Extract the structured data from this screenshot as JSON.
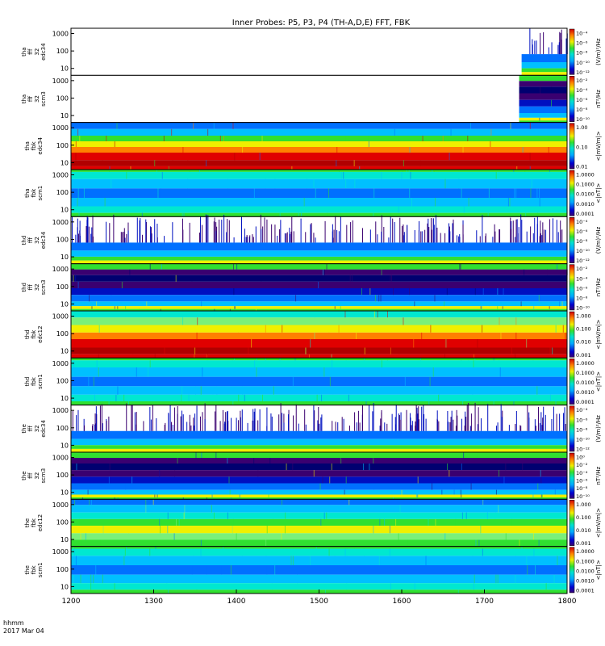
{
  "title": "Inner Probes: P5, P3, P4 (TH-A,D,E) FFT, FBK",
  "footer": {
    "line1": "hhmm",
    "line2": "2017 Mar 04"
  },
  "x_axis": {
    "min": 1200,
    "max": 1800,
    "ticks": [
      "1200",
      "1300",
      "1400",
      "1500",
      "1600",
      "1700",
      "1800"
    ]
  },
  "chart_data": [
    {
      "type": "heatmap",
      "ylabel": [
        "tha",
        "fff",
        "32",
        "edc34"
      ],
      "yscale": "log",
      "ylim": [
        4,
        2000
      ],
      "yticks": [
        "1000",
        "100",
        "10"
      ],
      "cbar_unit": "(V/m)²/Hz",
      "cbar_ticks": [
        "10⁻⁴",
        "10⁻⁶",
        "10⁻⁸",
        "10⁻¹⁰",
        "10⁻¹²"
      ],
      "data_range_x": [
        1745,
        1800
      ],
      "pattern": "spiky"
    },
    {
      "type": "heatmap",
      "ylabel": [
        "tha",
        "fff",
        "32",
        "scm3"
      ],
      "yscale": "log",
      "ylim": [
        4,
        2000
      ],
      "yticks": [
        "1000",
        "100",
        "10"
      ],
      "cbar_unit": "nT²/Hz",
      "cbar_ticks": [
        "10⁻²",
        "10⁻⁴",
        "10⁻⁶",
        "10⁻⁸",
        "10⁻¹⁰"
      ],
      "data_range_x": [
        1742,
        1800
      ],
      "pattern": "scm"
    },
    {
      "type": "heatmap",
      "ylabel": [
        "tha",
        "fbk",
        "edc34"
      ],
      "yscale": "log",
      "ylim": [
        4,
        2000
      ],
      "yticks": [
        "1000",
        "100",
        "10"
      ],
      "cbar_unit": "<|mV/m|>",
      "cbar_ticks": [
        "1.00",
        "0.10",
        "0.01"
      ],
      "data_range_x": [
        1200,
        1800
      ],
      "pattern": "fbkE"
    },
    {
      "type": "heatmap",
      "ylabel": [
        "tha",
        "fbk",
        "scm1"
      ],
      "yscale": "log",
      "ylim": [
        4,
        2000
      ],
      "yticks": [
        "1000",
        "100",
        "10"
      ],
      "cbar_unit": "<|nT|>",
      "cbar_ticks": [
        "1.0000",
        "0.1000",
        "0.0100",
        "0.0010",
        "0.0001"
      ],
      "data_range_x": [
        1200,
        1800
      ],
      "pattern": "fbkB"
    },
    {
      "type": "heatmap",
      "ylabel": [
        "thd",
        "fff",
        "32",
        "edc34"
      ],
      "yscale": "log",
      "ylim": [
        4,
        2000
      ],
      "yticks": [
        "1000",
        "100",
        "10"
      ],
      "cbar_unit": "(V/m)²/Hz",
      "cbar_ticks": [
        "10⁻⁴",
        "10⁻⁶",
        "10⁻⁸",
        "10⁻¹⁰",
        "10⁻¹²"
      ],
      "data_range_x": [
        1200,
        1800
      ],
      "pattern": "spiky"
    },
    {
      "type": "heatmap",
      "ylabel": [
        "thd",
        "fff",
        "32",
        "scm3"
      ],
      "yscale": "log",
      "ylim": [
        4,
        2000
      ],
      "yticks": [
        "1000",
        "100",
        "10"
      ],
      "cbar_unit": "nT²/Hz",
      "cbar_ticks": [
        "10⁻²",
        "10⁻⁴",
        "10⁻⁶",
        "10⁻⁸",
        "10⁻¹⁰"
      ],
      "data_range_x": [
        1200,
        1800
      ],
      "pattern": "scm"
    },
    {
      "type": "heatmap",
      "ylabel": [
        "thd",
        "fbk",
        "edc12"
      ],
      "yscale": "log",
      "ylim": [
        4,
        2000
      ],
      "yticks": [
        "1000",
        "100",
        "10"
      ],
      "cbar_unit": "<|mV/m|>",
      "cbar_ticks": [
        "1.000",
        "0.100",
        "0.010",
        "0.001"
      ],
      "data_range_x": [
        1200,
        1800
      ],
      "pattern": "fbkE2"
    },
    {
      "type": "heatmap",
      "ylabel": [
        "thd",
        "fbk",
        "scm1"
      ],
      "yscale": "log",
      "ylim": [
        4,
        2000
      ],
      "yticks": [
        "1000",
        "100",
        "10"
      ],
      "cbar_unit": "<|nT|>",
      "cbar_ticks": [
        "1.0000",
        "0.1000",
        "0.0100",
        "0.0010",
        "0.0001"
      ],
      "data_range_x": [
        1200,
        1800
      ],
      "pattern": "fbkB"
    },
    {
      "type": "heatmap",
      "ylabel": [
        "the",
        "fff",
        "32",
        "edc34"
      ],
      "yscale": "log",
      "ylim": [
        4,
        2000
      ],
      "yticks": [
        "1000",
        "100",
        "10"
      ],
      "cbar_unit": "(V/m)²/Hz",
      "cbar_ticks": [
        "10⁻⁴",
        "10⁻⁶",
        "10⁻⁸",
        "10⁻¹⁰",
        "10⁻¹²"
      ],
      "data_range_x": [
        1200,
        1800
      ],
      "pattern": "spiky"
    },
    {
      "type": "heatmap",
      "ylabel": [
        "the",
        "fff",
        "32",
        "scm3"
      ],
      "yscale": "log",
      "ylim": [
        4,
        2000
      ],
      "yticks": [
        "1000",
        "100",
        "10"
      ],
      "cbar_unit": "nT²/Hz",
      "cbar_ticks": [
        "10⁰",
        "10⁻²",
        "10⁻⁴",
        "10⁻⁶",
        "10⁻⁸",
        "10⁻¹⁰"
      ],
      "data_range_x": [
        1200,
        1800
      ],
      "pattern": "scm"
    },
    {
      "type": "heatmap",
      "ylabel": [
        "the",
        "fbk",
        "edc12"
      ],
      "yscale": "log",
      "ylim": [
        4,
        2000
      ],
      "yticks": [
        "1000",
        "100",
        "10"
      ],
      "cbar_unit": "<|mV/m|>",
      "cbar_ticks": [
        "1.000",
        "0.100",
        "0.010",
        "0.001"
      ],
      "data_range_x": [
        1200,
        1800
      ],
      "pattern": "fbkE3"
    },
    {
      "type": "heatmap",
      "ylabel": [
        "the",
        "fbk",
        "scm1"
      ],
      "yscale": "log",
      "ylim": [
        4,
        2000
      ],
      "yticks": [
        "1000",
        "100",
        "10"
      ],
      "cbar_unit": "<|nT|>",
      "cbar_ticks": [
        "1.0000",
        "0.1000",
        "0.0100",
        "0.0010",
        "0.0001"
      ],
      "data_range_x": [
        1200,
        1800
      ],
      "pattern": "fbkB"
    }
  ]
}
